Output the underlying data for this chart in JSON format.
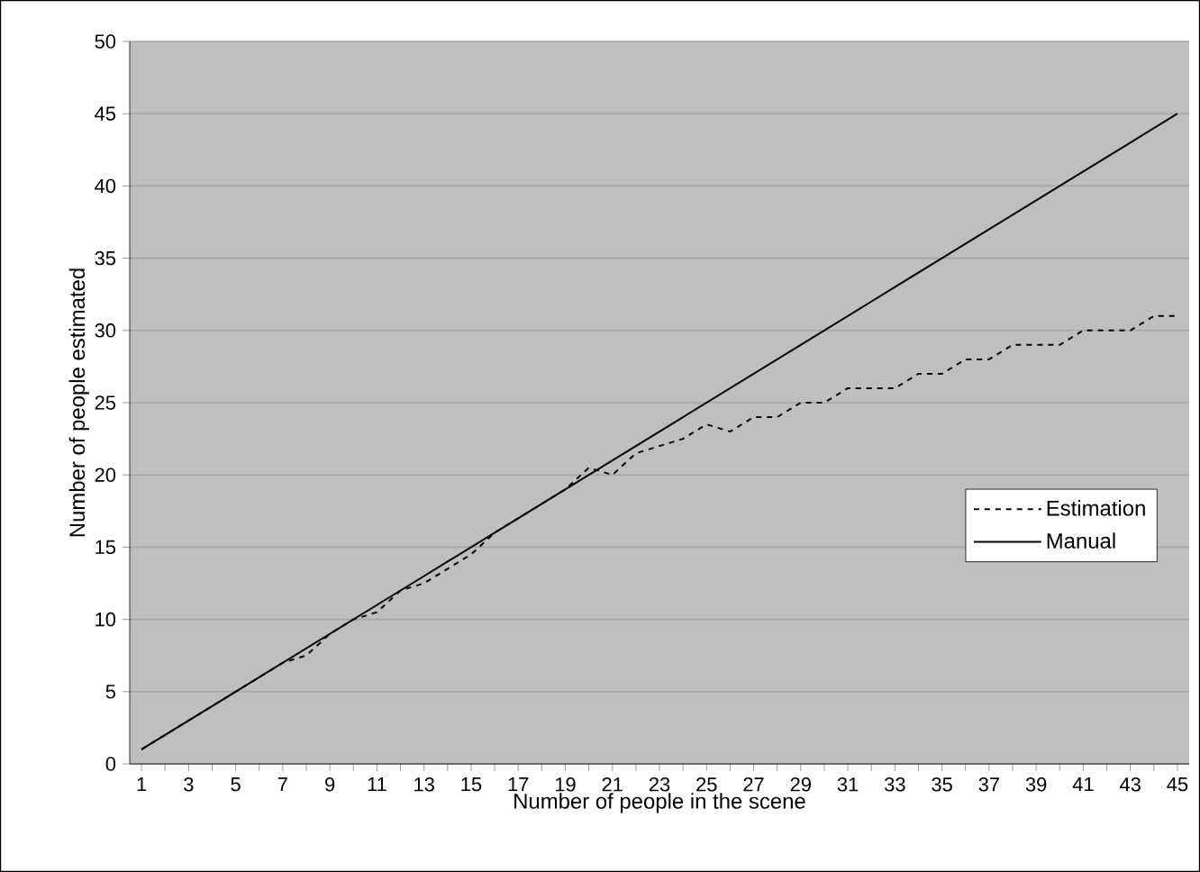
{
  "chart_data": {
    "type": "line",
    "xlabel": "Number of people in the scene",
    "ylabel": "Number of people estimated",
    "categories": [
      "1",
      null,
      "3",
      null,
      "5",
      null,
      "7",
      null,
      "9",
      null,
      "11",
      null,
      "13",
      null,
      "15",
      null,
      "17",
      null,
      "19",
      null,
      "21",
      null,
      "23",
      null,
      "25",
      null,
      "27",
      null,
      "29",
      null,
      "31",
      null,
      "33",
      null,
      "35",
      null,
      "37",
      null,
      "39",
      null,
      "41",
      null,
      "43",
      null,
      "45"
    ],
    "series": [
      {
        "name": "Estimation",
        "color": "#000000",
        "line_style": "dashed",
        "values": [
          1,
          2,
          3,
          4,
          5,
          6,
          7,
          7.5,
          9,
          10,
          10.5,
          12,
          12.5,
          13.5,
          14.5,
          16,
          17,
          18,
          19,
          20.5,
          20,
          21.5,
          22,
          22.5,
          23.5,
          23,
          24,
          24,
          25,
          25,
          26,
          26,
          26,
          27,
          27,
          28,
          28,
          29,
          29,
          29,
          30,
          30,
          30,
          31,
          31
        ]
      },
      {
        "name": "Manual",
        "color": "#000000",
        "line_style": "solid",
        "values": [
          1,
          2,
          3,
          4,
          5,
          6,
          7,
          8,
          9,
          10,
          11,
          12,
          13,
          14,
          15,
          16,
          17,
          18,
          19,
          20,
          21,
          22,
          23,
          24,
          25,
          26,
          27,
          28,
          29,
          30,
          31,
          32,
          33,
          34,
          35,
          36,
          37,
          38,
          39,
          40,
          41,
          42,
          43,
          44,
          45
        ]
      }
    ],
    "ylim": [
      0,
      50
    ],
    "yticks": [
      0,
      5,
      10,
      15,
      20,
      25,
      30,
      35,
      40,
      45,
      50
    ],
    "grid": "y",
    "legend": "right",
    "marker": "none"
  }
}
